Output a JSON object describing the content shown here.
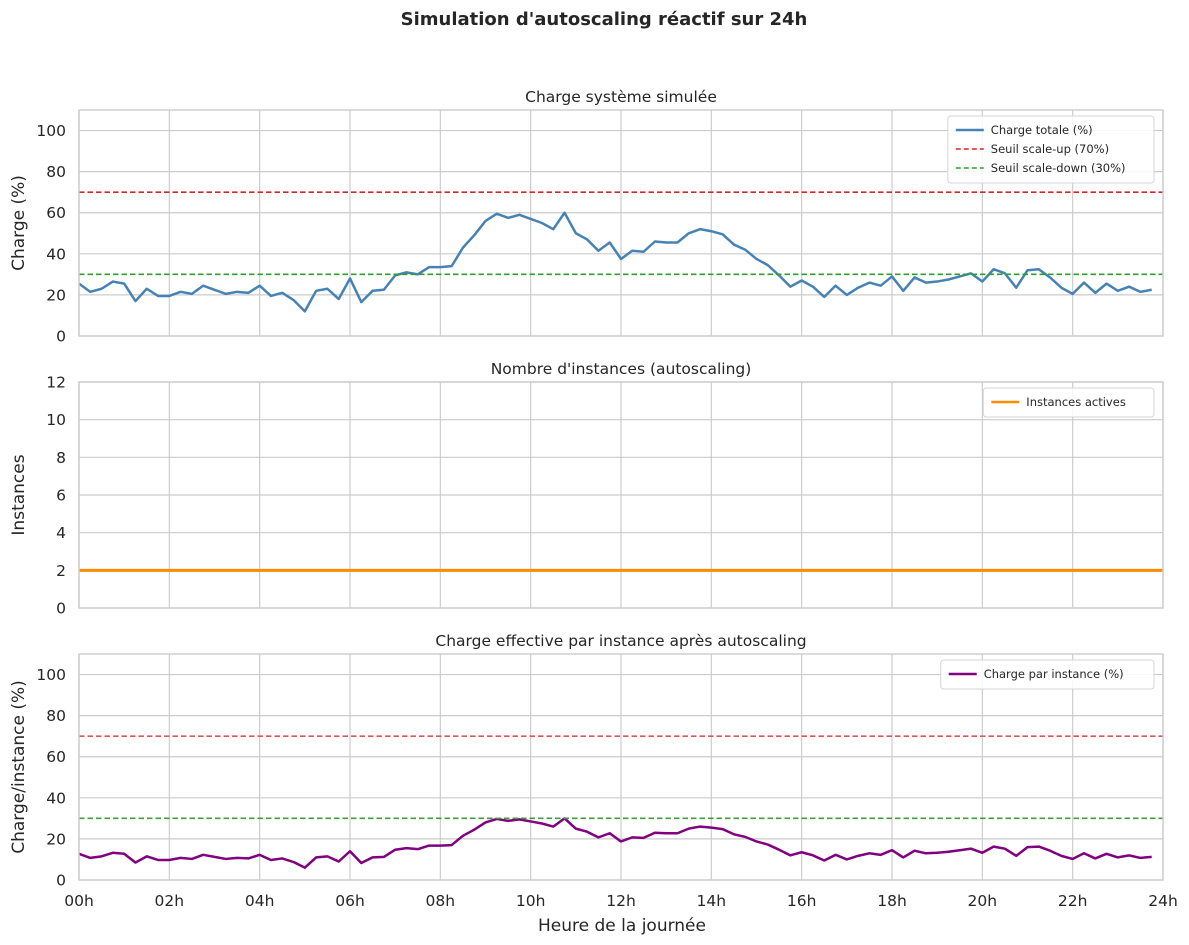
{
  "chart_data": {
    "type": "line",
    "suptitle": "Simulation d'autoscaling réactif sur 24h",
    "xlabel": "Heure de la journée",
    "xlim": [
      0,
      24
    ],
    "x_ticks": [
      0,
      2,
      4,
      6,
      8,
      10,
      12,
      14,
      16,
      18,
      20,
      22,
      24
    ],
    "x_tick_labels": [
      "00h",
      "02h",
      "04h",
      "06h",
      "08h",
      "10h",
      "12h",
      "14h",
      "16h",
      "18h",
      "20h",
      "22h",
      "24h"
    ],
    "x_step": 0.25,
    "panels": [
      {
        "title": "Charge système simulée",
        "ylabel": "Charge (%)",
        "ylim": [
          0,
          110
        ],
        "y_ticks": [
          0,
          20,
          40,
          60,
          80,
          100
        ],
        "legend_position": "top-right",
        "series": [
          {
            "name": "Charge totale (%)",
            "color": "#4682b4",
            "style": "solid",
            "values": [
              25.5,
              21.5,
              23,
              26.5,
              25.5,
              17,
              23,
              19.5,
              19.5,
              21.5,
              20.5,
              24.5,
              22.5,
              20.5,
              21.5,
              21,
              24.5,
              19.5,
              21,
              17.5,
              12,
              22,
              23,
              18,
              28,
              16.5,
              22,
              22.5,
              29.5,
              31,
              30,
              33.5,
              33.5,
              34,
              43,
              49,
              56,
              59.5,
              57.5,
              59,
              57,
              55,
              52,
              60,
              50,
              47,
              41.5,
              45.5,
              37.5,
              41.5,
              41,
              46,
              45.5,
              45.5,
              50,
              52,
              51,
              49.5,
              44.5,
              42,
              37.5,
              34.5,
              29.5,
              24,
              27,
              24,
              19,
              24.5,
              20,
              23.5,
              26,
              24.5,
              29,
              22,
              28.5,
              26,
              26.5,
              27.5,
              29,
              30.5,
              26.5,
              32.5,
              30.5,
              23.5,
              32,
              32.5,
              28.5,
              23.5,
              20.5,
              26,
              21,
              25.5,
              22,
              24,
              21.5,
              22.5
            ]
          },
          {
            "name": "Seuil scale-up (70%)",
            "color": "#d62728",
            "style": "dashed",
            "constant": 70
          },
          {
            "name": "Seuil scale-down (30%)",
            "color": "#2ca02c",
            "style": "dashed",
            "constant": 30
          }
        ]
      },
      {
        "title": "Nombre d'instances (autoscaling)",
        "ylabel": "Instances",
        "ylim": [
          0,
          12
        ],
        "y_ticks": [
          0,
          2,
          4,
          6,
          8,
          10,
          12
        ],
        "legend_position": "top-right",
        "series": [
          {
            "name": "Instances actives",
            "color": "#ff8c00",
            "style": "solid",
            "constant": 2
          }
        ]
      },
      {
        "title": "Charge effective par instance après autoscaling",
        "ylabel": "Charge/instance (%)",
        "ylim": [
          0,
          110
        ],
        "y_ticks": [
          0,
          20,
          40,
          60,
          80,
          100
        ],
        "legend_position": "top-right",
        "series": [
          {
            "name": "Charge par instance (%)",
            "color": "#800080",
            "style": "solid",
            "derived_from_panel": 0,
            "divisor": 2
          },
          {
            "name": "",
            "color": "#e05555",
            "style": "dashed",
            "constant": 70,
            "in_legend": false
          },
          {
            "name": "",
            "color": "#3f9f3f",
            "style": "dashed",
            "constant": 30,
            "in_legend": false
          }
        ]
      }
    ]
  }
}
